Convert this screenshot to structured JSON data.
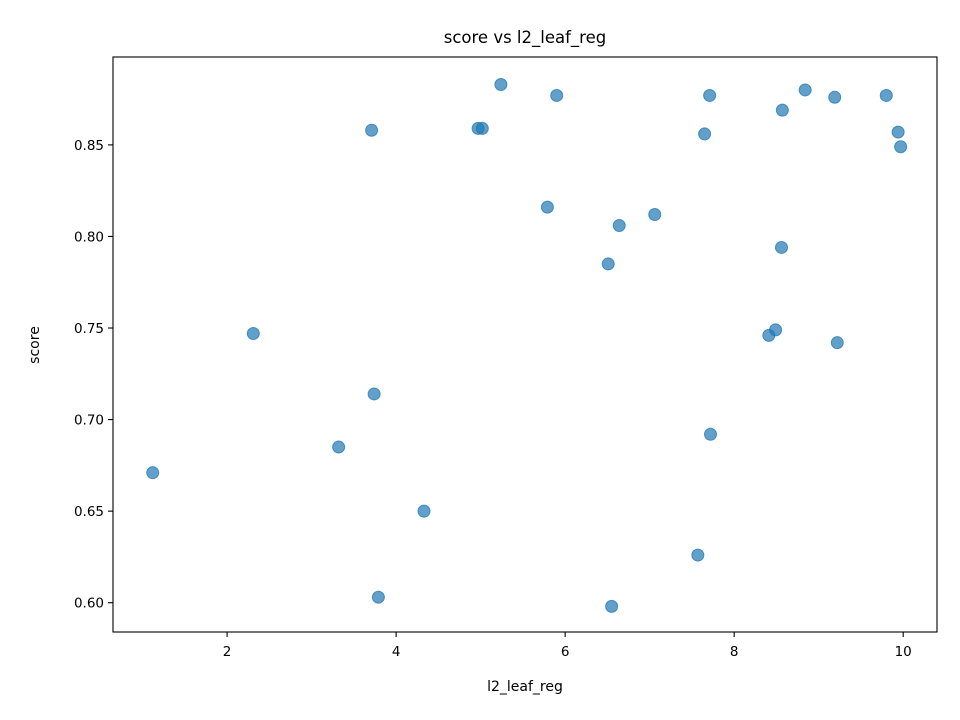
{
  "chart_data": {
    "type": "scatter",
    "title": "score vs l2_leaf_reg",
    "xlabel": "l2_leaf_reg",
    "ylabel": "score",
    "xlim": [
      0.65,
      10.4
    ],
    "ylim": [
      0.584,
      0.898
    ],
    "xticks": [
      2,
      4,
      6,
      8,
      10
    ],
    "yticks": [
      0.6,
      0.65,
      0.7,
      0.75,
      0.8,
      0.85
    ],
    "ytick_labels": [
      "0.60",
      "0.65",
      "0.70",
      "0.75",
      "0.80",
      "0.85"
    ],
    "grid": false,
    "color": "#1f77b4",
    "points": [
      {
        "x": 1.12,
        "y": 0.671
      },
      {
        "x": 2.31,
        "y": 0.747
      },
      {
        "x": 3.32,
        "y": 0.685
      },
      {
        "x": 3.71,
        "y": 0.858
      },
      {
        "x": 3.74,
        "y": 0.714
      },
      {
        "x": 3.79,
        "y": 0.603
      },
      {
        "x": 4.33,
        "y": 0.65
      },
      {
        "x": 4.97,
        "y": 0.859
      },
      {
        "x": 5.02,
        "y": 0.859
      },
      {
        "x": 5.24,
        "y": 0.883
      },
      {
        "x": 5.79,
        "y": 0.816
      },
      {
        "x": 5.9,
        "y": 0.877
      },
      {
        "x": 6.51,
        "y": 0.785
      },
      {
        "x": 6.55,
        "y": 0.598
      },
      {
        "x": 6.64,
        "y": 0.806
      },
      {
        "x": 7.06,
        "y": 0.812
      },
      {
        "x": 7.57,
        "y": 0.626
      },
      {
        "x": 7.65,
        "y": 0.856
      },
      {
        "x": 7.71,
        "y": 0.877
      },
      {
        "x": 7.72,
        "y": 0.692
      },
      {
        "x": 8.41,
        "y": 0.746
      },
      {
        "x": 8.49,
        "y": 0.749
      },
      {
        "x": 8.56,
        "y": 0.794
      },
      {
        "x": 8.57,
        "y": 0.869
      },
      {
        "x": 8.84,
        "y": 0.88
      },
      {
        "x": 9.19,
        "y": 0.876
      },
      {
        "x": 9.22,
        "y": 0.742
      },
      {
        "x": 9.8,
        "y": 0.877
      },
      {
        "x": 9.94,
        "y": 0.857
      },
      {
        "x": 9.97,
        "y": 0.849
      }
    ]
  }
}
